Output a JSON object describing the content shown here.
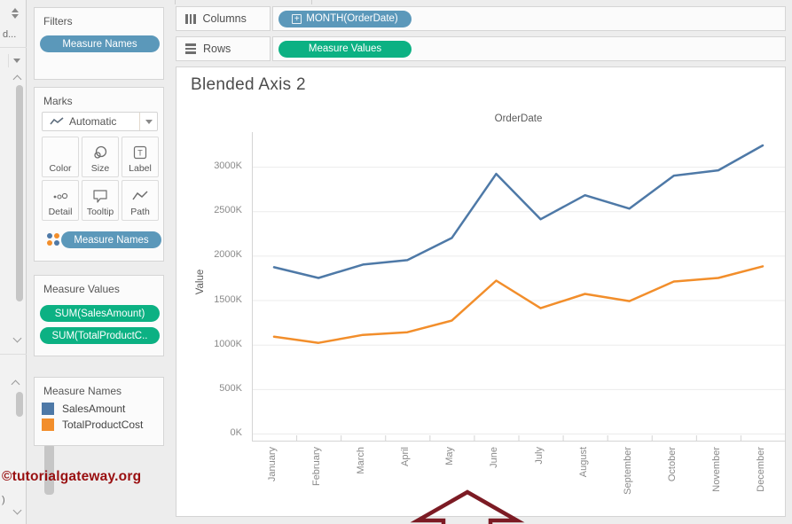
{
  "left_strip": {
    "truncated_field": "d...",
    "truncated_paren": ")"
  },
  "shelves": {
    "columns": {
      "label": "Columns",
      "pill": "MONTH(OrderDate)"
    },
    "rows": {
      "label": "Rows",
      "pill": "Measure Values"
    }
  },
  "filters": {
    "title": "Filters",
    "pill": "Measure Names"
  },
  "marks": {
    "title": "Marks",
    "mark_type": "Automatic",
    "buttons": [
      {
        "label": "Color"
      },
      {
        "label": "Size"
      },
      {
        "label": "Label"
      },
      {
        "label": "Detail"
      },
      {
        "label": "Tooltip"
      },
      {
        "label": "Path"
      }
    ],
    "color_pill": "Measure Names"
  },
  "measure_values": {
    "title": "Measure Values",
    "pills": [
      "SUM(SalesAmount)",
      "SUM(TotalProductC.."
    ]
  },
  "legend": {
    "title": "Measure Names",
    "items": [
      {
        "label": "SalesAmount",
        "color": "#4e79a7"
      },
      {
        "label": "TotalProductCost",
        "color": "#f28e2b"
      }
    ]
  },
  "worksheet": {
    "title": "Blended Axis 2"
  },
  "watermark": "©tutorialgateway.org",
  "colors": {
    "dimension_pill_blue": "#5b98ba",
    "measure_pill_green": "#0cb183",
    "annotation_red": "#7c1b24",
    "watermark_red": "#990f10"
  },
  "chart_data": {
    "type": "line",
    "title": "Blended Axis 2",
    "top_axis_header": "OrderDate",
    "xlabel": "",
    "ylabel": "Value",
    "categories": [
      "January",
      "February",
      "March",
      "April",
      "May",
      "June",
      "July",
      "August",
      "September",
      "October",
      "November",
      "December"
    ],
    "series": [
      {
        "name": "SalesAmount",
        "color": "#4e79a7",
        "values_thousands": [
          1870,
          1750,
          1900,
          1950,
          2200,
          2920,
          2410,
          2680,
          2530,
          2900,
          2960,
          3240
        ]
      },
      {
        "name": "TotalProductCost",
        "color": "#f28e2b",
        "values_thousands": [
          1090,
          1020,
          1110,
          1140,
          1270,
          1720,
          1410,
          1570,
          1490,
          1710,
          1750,
          1880
        ]
      }
    ],
    "y_tick_labels": [
      "0K",
      "500K",
      "1000K",
      "1500K",
      "2000K",
      "2500K",
      "3000K"
    ],
    "y_tick_values_thousands": [
      0,
      500,
      1000,
      1500,
      2000,
      2500,
      3000
    ],
    "ylim_thousands": [
      0,
      3390
    ],
    "grid": true,
    "legend_position": "left-panel"
  }
}
